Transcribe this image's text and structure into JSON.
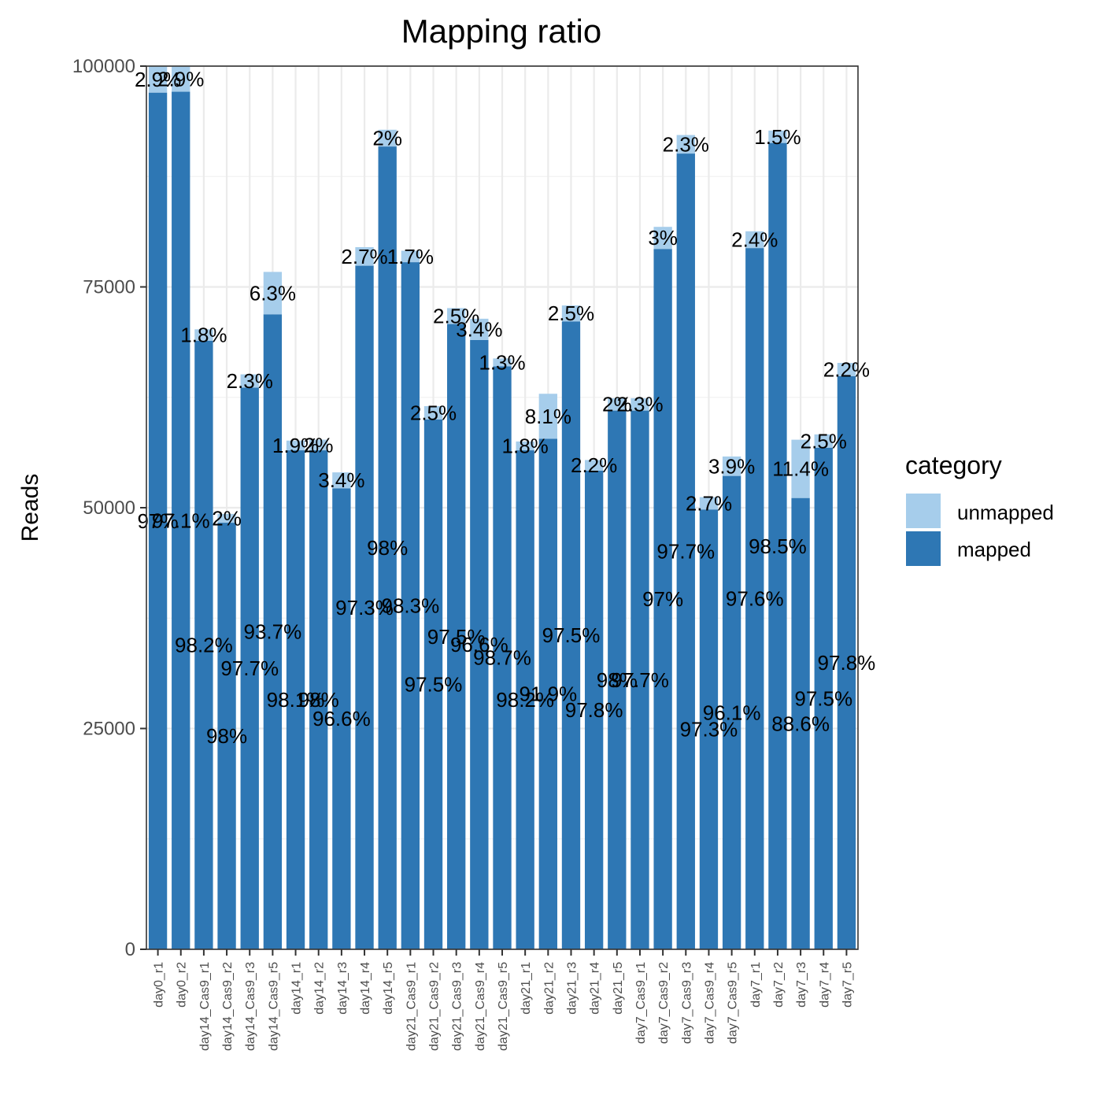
{
  "chart_data": {
    "type": "bar",
    "stacked": true,
    "title": "Mapping ratio",
    "xlabel": "",
    "ylabel": "Reads",
    "ylim": [
      0,
      100000
    ],
    "yticks": [
      0,
      25000,
      50000,
      75000,
      100000
    ],
    "ytick_labels": [
      "0",
      "25000",
      "50000",
      "75000",
      "100000"
    ],
    "grid": true,
    "legend": {
      "title": "category",
      "position": "right",
      "entries": [
        {
          "label": "unmapped",
          "color": "#a6cdeb"
        },
        {
          "label": "mapped",
          "color": "#2e77b4"
        }
      ]
    },
    "colors": {
      "unmapped": "#a6cdeb",
      "mapped": "#2e77b4"
    },
    "categories": [
      "day0_r1",
      "day0_r2",
      "day14_Cas9_r1",
      "day14_Cas9_r2",
      "day14_Cas9_r3",
      "day14_Cas9_r5",
      "day14_r1",
      "day14_r2",
      "day14_r3",
      "day14_r4",
      "day14_r5",
      "day21_Cas9_r1",
      "day21_Cas9_r2",
      "day21_Cas9_r3",
      "day21_Cas9_r4",
      "day21_Cas9_r5",
      "day21_r1",
      "day21_r2",
      "day21_r3",
      "day21_r4",
      "day21_r5",
      "day7_Cas9_r1",
      "day7_Cas9_r2",
      "day7_Cas9_r3",
      "day7_Cas9_r4",
      "day7_Cas9_r5",
      "day7_r1",
      "day7_r2",
      "day7_r3",
      "day7_r4",
      "day7_r5"
    ],
    "series": [
      {
        "name": "mapped",
        "values": [
          97000,
          97100,
          68900,
          48300,
          63600,
          71900,
          56500,
          56500,
          52200,
          77400,
          90900,
          77800,
          60000,
          70800,
          69000,
          66000,
          56500,
          57800,
          71100,
          54200,
          61000,
          61000,
          79300,
          90100,
          49800,
          53600,
          79400,
          91300,
          51100,
          56800,
          64900
        ],
        "labels": [
          "97%",
          "97.1%",
          "98.2%",
          "98%",
          "97.7%",
          "93.7%",
          "98.1%",
          "98%",
          "96.6%",
          "97.3%",
          "98%",
          "98.3%",
          "97.5%",
          "97.5%",
          "96.6%",
          "98.7%",
          "98.2%",
          "91.9%",
          "97.5%",
          "97.8%",
          "98%",
          "97.7%",
          "97%",
          "97.7%",
          "97.3%",
          "96.1%",
          "97.6%",
          "98.5%",
          "88.6%",
          "97.5%",
          "97.8%"
        ]
      },
      {
        "name": "unmapped",
        "values": [
          3000,
          2900,
          1300,
          1000,
          1500,
          4800,
          1100,
          1200,
          1800,
          2100,
          1900,
          1300,
          1500,
          1800,
          2400,
          900,
          1000,
          5100,
          1800,
          1200,
          1400,
          1400,
          2500,
          2100,
          1400,
          2200,
          1900,
          1400,
          6600,
          1500,
          1500
        ],
        "labels": [
          "2.9%",
          "2.9%",
          "1.8%",
          "2%",
          "2.3%",
          "6.3%",
          "1.9%",
          "2%",
          "3.4%",
          "2.7%",
          "2%",
          "1.7%",
          "2.5%",
          "2.5%",
          "3.4%",
          "1.3%",
          "1.8%",
          "8.1%",
          "2.5%",
          "2.2%",
          "2%",
          "2.3%",
          "3%",
          "2.3%",
          "2.7%",
          "3.9%",
          "2.4%",
          "1.5%",
          "11.4%",
          "2.5%",
          "2.2%"
        ]
      }
    ]
  }
}
